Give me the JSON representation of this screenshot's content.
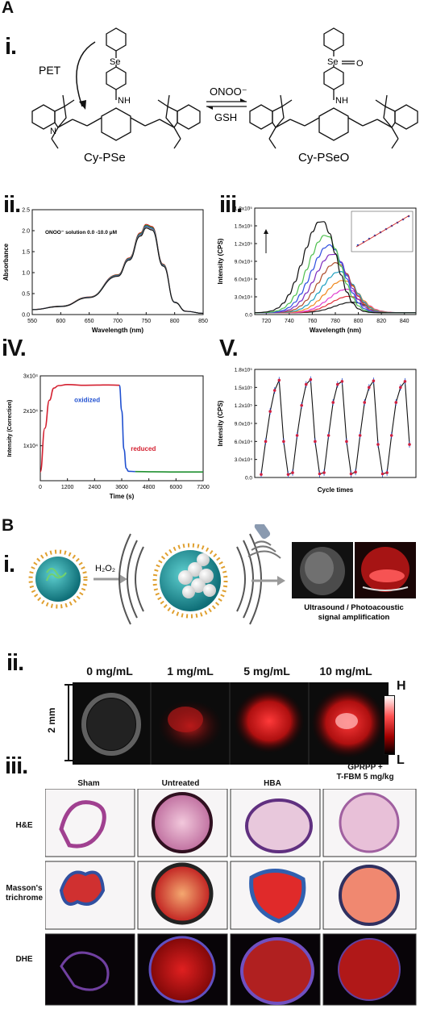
{
  "panel_a": {
    "letter": "A",
    "i": {
      "roman": "i.",
      "pet_label": "PET",
      "left_compound": "Cy-PSe",
      "right_compound": "Cy-PSeO",
      "forward_reagent": "ONOO⁻",
      "reverse_reagent": "GSH",
      "atom_se": "Se",
      "atom_se_right": "Se",
      "atom_o": "O",
      "atom_nh": "NH",
      "atom_nh_right": "NH",
      "atom_n": "N"
    },
    "ii": {
      "roman": "ii.",
      "legend": "ONOO⁻ solution 0.0 -10.0 μM"
    },
    "iii": {
      "roman": "iii."
    },
    "iv": {
      "roman": "iV.",
      "label_oxidized": "oxidized",
      "label_reduced": "reduced"
    },
    "v": {
      "roman": "V."
    }
  },
  "panel_b": {
    "letter": "B",
    "i": {
      "roman": "i.",
      "reagent": "H₂O₂",
      "caption_line1": "Ultrasound / Photoacoustic",
      "caption_line2": "signal amplification"
    },
    "ii": {
      "roman": "ii.",
      "concentrations": [
        "0 mg/mL",
        "1 mg/mL",
        "5 mg/mL",
        "10 mg/mL"
      ],
      "scale": "2 mm",
      "colorbar_high": "H",
      "colorbar_low": "L"
    },
    "iii": {
      "roman": "iii.",
      "columns": [
        "Sham",
        "Untreated",
        "HBA",
        "GPRPP +\nT-FBM 5 mg/kg"
      ],
      "col_line1": [
        "Sham",
        "Untreated",
        "HBA",
        "GPRPP +"
      ],
      "col_line2": [
        "",
        "",
        "",
        "T-FBM 5 mg/kg"
      ],
      "rows": [
        "H&E",
        "Masson's",
        "DHE"
      ],
      "row2_line2": "trichrome"
    }
  },
  "chart_data": [
    {
      "type": "line",
      "panel": "A.ii",
      "xlabel": "Wavelength (nm)",
      "ylabel": "Absorbance",
      "xlim": [
        550,
        850
      ],
      "ylim": [
        0,
        2.5
      ],
      "xticks": [
        550,
        600,
        650,
        700,
        750,
        800,
        850
      ],
      "yticks": [
        0.0,
        0.5,
        1.0,
        1.5,
        2.0,
        2.5
      ],
      "x": [
        550,
        600,
        650,
        700,
        720,
        740,
        750,
        760,
        780,
        800,
        820,
        850
      ],
      "series": [
        {
          "values": [
            0.12,
            0.2,
            0.42,
            0.95,
            1.35,
            1.95,
            2.15,
            2.1,
            1.2,
            0.3,
            0.08,
            0.03
          ]
        }
      ]
    },
    {
      "type": "line",
      "panel": "A.iii",
      "xlabel": "Wavelength (nm)",
      "ylabel": "Intensity (CPS)",
      "xlim": [
        710,
        850
      ],
      "ylim": [
        0,
        180000
      ],
      "xticks": [
        720,
        740,
        760,
        780,
        800,
        820,
        840
      ],
      "yticks": [
        "0.0",
        "3.0x10⁴",
        "6.0x10⁴",
        "9.0x10⁴",
        "1.2x10⁵",
        "1.5x10⁵",
        "1.8x10⁵"
      ],
      "series_peaks": [
        {
          "color": "#1a1a1a",
          "peak_x": 795,
          "peak_y": 18000
        },
        {
          "color": "#e0303a",
          "peak_x": 792,
          "peak_y": 28000
        },
        {
          "color": "#e040d0",
          "peak_x": 790,
          "peak_y": 40000
        },
        {
          "color": "#f08a20",
          "peak_x": 787,
          "peak_y": 55000
        },
        {
          "color": "#20a0c0",
          "peak_x": 784,
          "peak_y": 70000
        },
        {
          "color": "#b05030",
          "peak_x": 781,
          "peak_y": 85000
        },
        {
          "color": "#8030c0",
          "peak_x": 778,
          "peak_y": 100000
        },
        {
          "color": "#3050e0",
          "peak_x": 775,
          "peak_y": 115000
        },
        {
          "color": "#50c050",
          "peak_x": 772,
          "peak_y": 132000
        },
        {
          "color": "#101010",
          "peak_x": 768,
          "peak_y": 156000
        }
      ]
    },
    {
      "type": "line",
      "panel": "A.iv",
      "xlabel": "Time (s)",
      "ylabel": "Intensity (Correction)",
      "xlim": [
        0,
        7200
      ],
      "ylim": [
        0,
        30000
      ],
      "xticks": [
        0,
        1200,
        2400,
        3600,
        4800,
        6000,
        7200
      ],
      "yticks": [
        "1x10⁴",
        "2x10⁴",
        "3x10⁴"
      ],
      "series": [
        {
          "name": "oxidized",
          "x": [
            0,
            200,
            400,
            600,
            800,
            1200,
            2000,
            3000,
            3500
          ],
          "values": [
            2500,
            15000,
            23000,
            26500,
            27200,
            27500,
            27300,
            27400,
            27300
          ]
        },
        {
          "name": "reduced",
          "x": [
            3500,
            3600,
            3700,
            3800,
            3900,
            4200
          ],
          "values": [
            27300,
            20000,
            9000,
            3500,
            2700,
            2600
          ]
        },
        {
          "x": [
            4200,
            5000,
            6000,
            7200
          ],
          "values": [
            2600,
            2550,
            2500,
            2500
          ]
        }
      ]
    },
    {
      "type": "line",
      "panel": "A.v",
      "xlabel": "Cycle times",
      "ylabel": "Intensity (CPS)",
      "ylim": [
        0,
        180000
      ],
      "yticks": [
        "0.0",
        "3.0x10⁴",
        "6.0x10⁴",
        "9.0x10⁴",
        "1.2x10⁵",
        "1.5x10⁵",
        "1.8x10⁵"
      ],
      "values": [
        5000,
        60000,
        110000,
        145000,
        162000,
        60000,
        5000,
        8000,
        70000,
        120000,
        155000,
        163000,
        60000,
        6000,
        8000,
        70000,
        125000,
        155000,
        160000,
        60000,
        6000,
        9000,
        70000,
        125000,
        150000,
        161000,
        55000,
        6000,
        8000,
        70000,
        125000,
        150000,
        160000,
        55000
      ]
    }
  ],
  "colors": {
    "red": "#e02020",
    "teal": "#1e8a8a",
    "curve_red": "#d42030",
    "curve_blue": "#2050d0",
    "curve_green": "#209030"
  }
}
